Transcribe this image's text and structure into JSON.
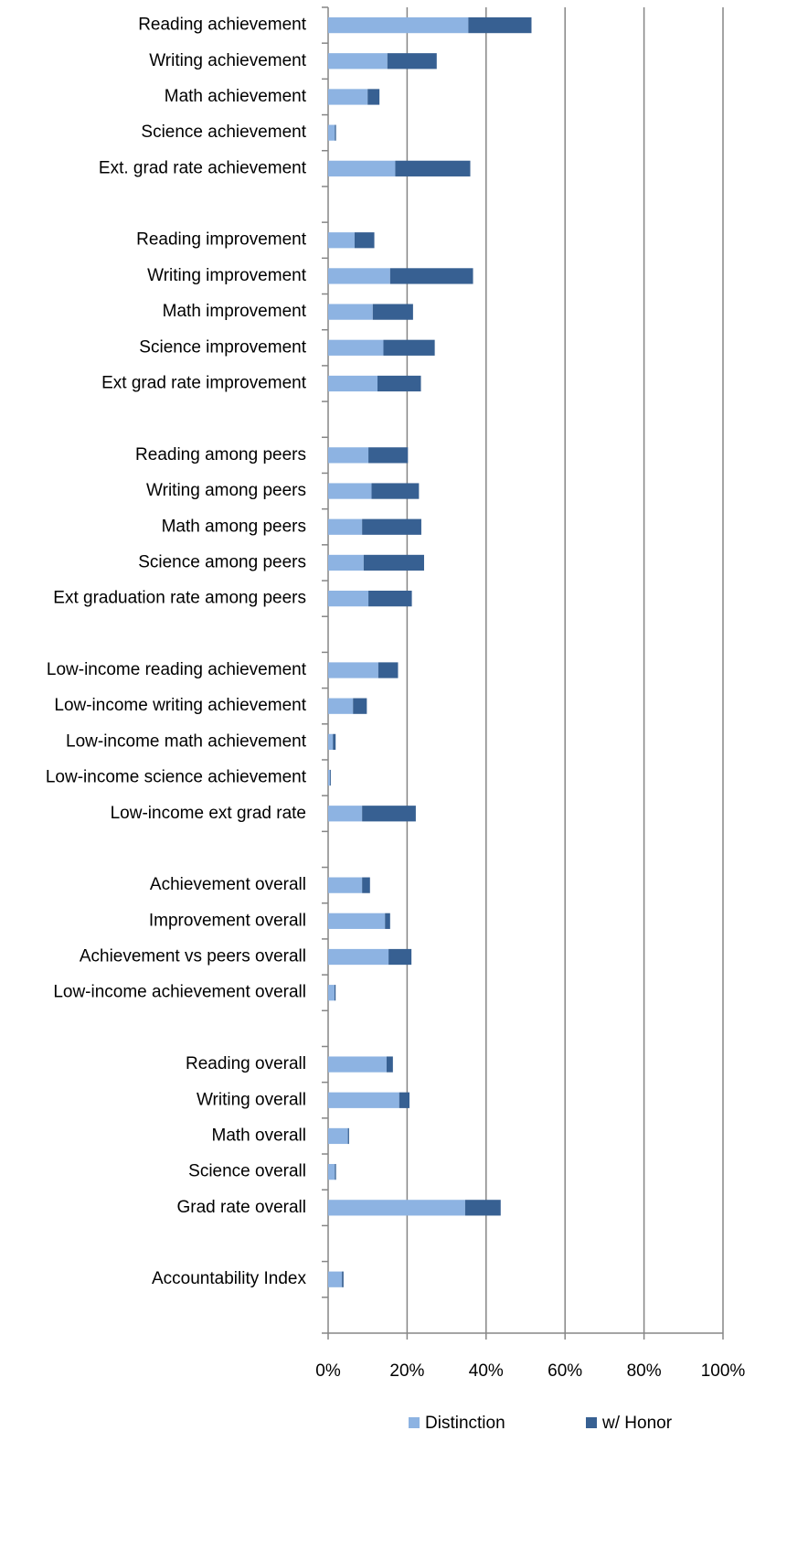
{
  "chart_data": {
    "type": "stacked-barh",
    "categories": [
      "Reading achievement",
      "Writing achievement",
      "Math achievement",
      "Science achievement",
      "Ext. grad rate achievement",
      null,
      "Reading improvement",
      "Writing improvement",
      "Math improvement",
      "Science improvement",
      "Ext grad rate improvement",
      null,
      "Reading among  peers",
      "Writing among  peers",
      "Math among  peers",
      "Science among peers",
      "Ext graduation  rate among  peers",
      null,
      "Low-income reading achievement",
      "Low-income writing  achievement",
      "Low-income math  achievement",
      "Low-income science achievement",
      "Low-income ext grad  rate",
      null,
      "Achievement overall",
      "Improvement overall",
      "Achievement vs peers overall",
      "Low-income achievement overall",
      null,
      "Reading overall",
      "Writing overall",
      "Math overall",
      "Science overall",
      "Grad rate  overall",
      null,
      "Accountability Index",
      null
    ],
    "series": [
      {
        "name": "Distinction",
        "color": "#8db3e2",
        "values": [
          35.5,
          15,
          10,
          1.7,
          17,
          null,
          6.7,
          15.7,
          11.3,
          14,
          12.5,
          null,
          10.2,
          11,
          8.6,
          9,
          10.2,
          null,
          12.7,
          6.3,
          1.2,
          0.5,
          8.6,
          null,
          8.6,
          14.4,
          15.3,
          1.6,
          null,
          14.8,
          18,
          5,
          1.7,
          34.7,
          null,
          3.5,
          null
        ]
      },
      {
        "name": "w/ Honor",
        "color": "#376092",
        "values": [
          16,
          12.5,
          3,
          0.3,
          19,
          null,
          5,
          21,
          10.2,
          13,
          11,
          null,
          10,
          12,
          15,
          15.3,
          11,
          null,
          5,
          3.5,
          0.7,
          0.2,
          13.6,
          null,
          2,
          1.3,
          5.8,
          0.3,
          null,
          1.6,
          2.6,
          0.3,
          0.3,
          9,
          null,
          0.4,
          null
        ]
      }
    ],
    "xlim": [
      0,
      100
    ],
    "xticks": [
      {
        "value": 0,
        "label": "0%"
      },
      {
        "value": 20,
        "label": "20%"
      },
      {
        "value": 40,
        "label": "40%"
      },
      {
        "value": 60,
        "label": "60%"
      },
      {
        "value": 80,
        "label": "80%"
      },
      {
        "value": 100,
        "label": "100%"
      }
    ],
    "grid": true,
    "legend": "bottom"
  }
}
